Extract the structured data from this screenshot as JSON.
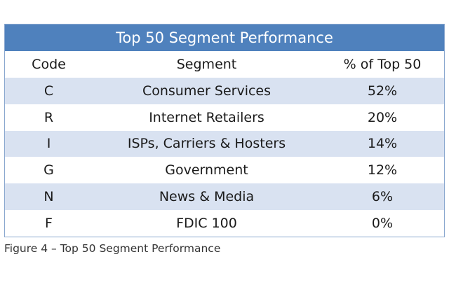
{
  "table": {
    "title": "Top 50 Segment Performance",
    "headers": {
      "code": "Code",
      "segment": "Segment",
      "percent": "% of Top 50"
    },
    "rows": [
      {
        "code": "C",
        "segment": "Consumer Services",
        "percent": "52%"
      },
      {
        "code": "R",
        "segment": "Internet Retailers",
        "percent": "20%"
      },
      {
        "code": "I",
        "segment": "ISPs, Carriers & Hosters",
        "percent": "14%"
      },
      {
        "code": "G",
        "segment": "Government",
        "percent": "12%"
      },
      {
        "code": "N",
        "segment": "News & Media",
        "percent": "6%"
      },
      {
        "code": "F",
        "segment": "FDIC 100",
        "percent": "0%"
      }
    ]
  },
  "caption": "Figure 4 – Top 50 Segment Performance",
  "colors": {
    "title_background": "#4f81bd",
    "shaded_row": "#d9e2f1",
    "border": "#8aa7cf"
  }
}
